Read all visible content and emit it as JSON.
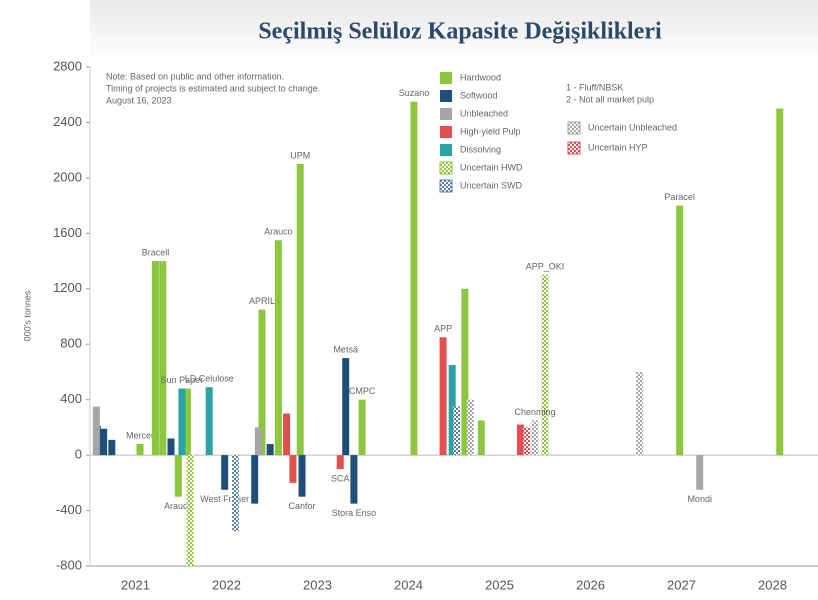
{
  "chart_data": {
    "type": "bar",
    "title": "Seçilmiş Selüloz Kapasite Değişiklikleri",
    "y_label": "000's tonnes",
    "note": [
      "Note: Based on public and other information.",
      "Timing of projects is estimated and subject to change.",
      "August 16, 2023"
    ],
    "footnotes": [
      "1 - Fluff/NBSK",
      "2 - Not all market pulp"
    ],
    "years": [
      "2021",
      "2022",
      "2023",
      "2024",
      "2025",
      "2026",
      "2027",
      "2028"
    ],
    "xlim": [
      2021,
      2029
    ],
    "ylim": [
      -800,
      2800
    ],
    "yticks": [
      -800,
      -400,
      0,
      400,
      800,
      1200,
      1600,
      2000,
      2400,
      2800
    ],
    "series": [
      {
        "name": "Hardwood",
        "color": "#8dc63f",
        "pattern": false,
        "x": [
          2021.55,
          2021.72,
          2021.8,
          2021.97,
          2022.07,
          2022.89,
          2023.07,
          2023.31,
          2023.99,
          2024.56,
          2025.12,
          2025.3,
          2027.48,
          2028.58
        ],
        "values": [
          80,
          1400,
          1400,
          -300,
          480,
          1050,
          1550,
          2100,
          400,
          2550,
          1200,
          250,
          1800,
          2500
        ],
        "labels": [
          "Mercer",
          "Bracell",
          null,
          "Arauco",
          null,
          "APRIL",
          "Arauco",
          "UPM",
          "CMPC",
          "Suzano",
          null,
          null,
          "Paracel",
          null
        ]
      },
      {
        "name": "Softwood",
        "color": "#1f4e79",
        "pattern": false,
        "x": [
          2021.08,
          2021.15,
          2021.24,
          2021.89,
          2022.48,
          2022.81,
          2022.98,
          2023.33,
          2023.81,
          2023.9
        ],
        "values": [
          210,
          190,
          110,
          120,
          -250,
          -350,
          80,
          -300,
          700,
          -350
        ],
        "labels": [
          null,
          null,
          null,
          null,
          "West Fraser",
          null,
          null,
          "Canfor",
          "Metsä",
          "Stora Enso"
        ]
      },
      {
        "name": "Unbleached",
        "color": "#a6a6a6",
        "pattern": false,
        "x": [
          2021.07,
          2022.85,
          2027.7
        ],
        "values": [
          350,
          200,
          -250
        ],
        "labels": [
          null,
          null,
          "Mondi"
        ]
      },
      {
        "name": "High-yield Pulp",
        "color": "#e05050",
        "pattern": false,
        "x": [
          2023.16,
          2023.23,
          2023.75,
          2024.88,
          2025.73
        ],
        "values": [
          300,
          -200,
          -100,
          850,
          220
        ],
        "labels": [
          null,
          null,
          "SCA",
          "APP",
          null
        ]
      },
      {
        "name": "Dissolving",
        "color": "#2aa3a3",
        "pattern": false,
        "x": [
          2022.01,
          2022.31,
          2024.98
        ],
        "values": [
          480,
          490,
          650
        ],
        "labels": [
          "Sun Paper",
          "LD Celulose",
          null
        ]
      },
      {
        "name": "Uncertain HWD",
        "color": "#8dc63f",
        "pattern": true,
        "x": [
          2022.1,
          2026.0
        ],
        "values": [
          -800,
          1300
        ],
        "labels": [
          null,
          "APP_OKI"
        ]
      },
      {
        "name": "Uncertain SWD",
        "color": "#5b7fa6",
        "pattern": true,
        "x": [
          2022.6,
          2025.03
        ],
        "values": [
          -550,
          350
        ],
        "labels": [
          null,
          null
        ]
      },
      {
        "name": "Uncertain Unbleached",
        "color": "#a6a6a6",
        "pattern": true,
        "x": [
          2025.18,
          2025.89,
          2027.04
        ],
        "values": [
          400,
          250,
          600
        ],
        "labels": [
          null,
          "Chenming",
          null
        ]
      },
      {
        "name": "Uncertain HYP",
        "color": "#e05050",
        "pattern": true,
        "x": [
          2025.8
        ],
        "values": [
          200
        ],
        "labels": [
          null
        ]
      }
    ]
  }
}
